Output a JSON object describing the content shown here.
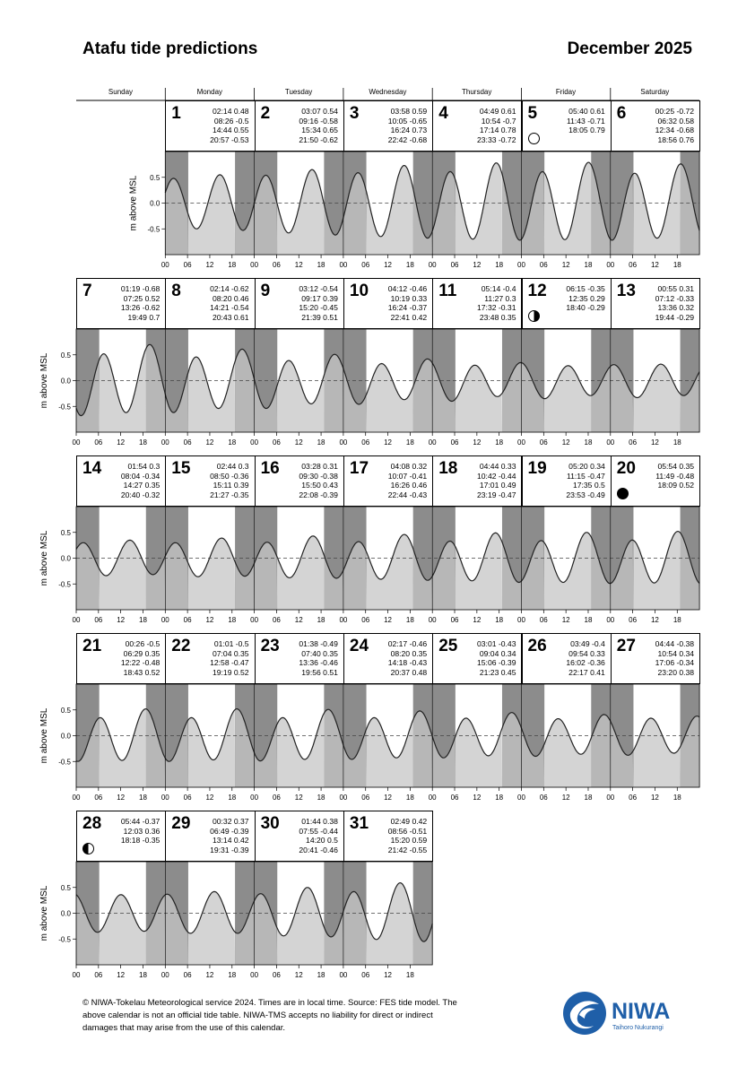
{
  "title": "Atafu tide predictions",
  "month": "December 2025",
  "weekdays": [
    "Sunday",
    "Monday",
    "Tuesday",
    "Wednesday",
    "Thursday",
    "Friday",
    "Saturday"
  ],
  "ylabel": "m above MSL",
  "footer": "© NIWA-Tokelau Meteorological service 2024.  Times are in local time.  Source: FES tide model.  The above calendar is not an official tide table.  NIWA-TMS accepts no liability for direct or indirect damages that may arise from the use of this calendar.",
  "logo": {
    "name": "NIWA",
    "tagline": "Taihoro Nukurangi",
    "color": "#1f5fa8"
  },
  "colors": {
    "night": "#8c8c8c",
    "day_fill": "#d4d4d4",
    "night_fill": "#b7b7b7"
  },
  "chart_data": {
    "type": "line",
    "ylim": [
      -1,
      1
    ],
    "yticks": [
      -0.5,
      0.0,
      0.5
    ],
    "ytick_labels": [
      "-0.5",
      "0.0",
      "0.5"
    ],
    "xtick_labels": [
      "00",
      "06",
      "12",
      "18"
    ],
    "sunrise_hour": 6.2,
    "sunset_hour": 18.8,
    "days": [
      {
        "day": "1",
        "col": 1,
        "row": 0,
        "tides": [
          [
            "02:14",
            "0.48"
          ],
          [
            "08:26",
            "-0.5"
          ],
          [
            "14:44",
            "0.55"
          ],
          [
            "20:57",
            "-0.53"
          ]
        ]
      },
      {
        "day": "2",
        "col": 2,
        "row": 0,
        "tides": [
          [
            "03:07",
            "0.54"
          ],
          [
            "09:16",
            "-0.58"
          ],
          [
            "15:34",
            "0.65"
          ],
          [
            "21:50",
            "-0.62"
          ]
        ]
      },
      {
        "day": "3",
        "col": 3,
        "row": 0,
        "tides": [
          [
            "03:58",
            "0.59"
          ],
          [
            "10:05",
            "-0.65"
          ],
          [
            "16:24",
            "0.73"
          ],
          [
            "22:42",
            "-0.68"
          ]
        ]
      },
      {
        "day": "4",
        "col": 4,
        "row": 0,
        "tides": [
          [
            "04:49",
            "0.61"
          ],
          [
            "10:54",
            "-0.7"
          ],
          [
            "17:14",
            "0.78"
          ],
          [
            "23:33",
            "-0.72"
          ]
        ]
      },
      {
        "day": "5",
        "col": 5,
        "row": 0,
        "moon": "full",
        "tides": [
          [
            "05:40",
            "0.61"
          ],
          [
            "11:43",
            "-0.71"
          ],
          [
            "18:05",
            "0.79"
          ]
        ]
      },
      {
        "day": "6",
        "col": 6,
        "row": 0,
        "tides": [
          [
            "00:25",
            "-0.72"
          ],
          [
            "06:32",
            "0.58"
          ],
          [
            "12:34",
            "-0.68"
          ],
          [
            "18:56",
            "0.76"
          ]
        ]
      },
      {
        "day": "7",
        "col": 0,
        "row": 1,
        "tides": [
          [
            "01:19",
            "-0.68"
          ],
          [
            "07:25",
            "0.52"
          ],
          [
            "13:26",
            "-0.62"
          ],
          [
            "19:49",
            "0.7"
          ]
        ]
      },
      {
        "day": "8",
        "col": 1,
        "row": 1,
        "tides": [
          [
            "02:14",
            "-0.62"
          ],
          [
            "08:20",
            "0.46"
          ],
          [
            "14:21",
            "-0.54"
          ],
          [
            "20:43",
            "0.61"
          ]
        ]
      },
      {
        "day": "9",
        "col": 2,
        "row": 1,
        "tides": [
          [
            "03:12",
            "-0.54"
          ],
          [
            "09:17",
            "0.39"
          ],
          [
            "15:20",
            "-0.45"
          ],
          [
            "21:39",
            "0.51"
          ]
        ]
      },
      {
        "day": "10",
        "col": 3,
        "row": 1,
        "tides": [
          [
            "04:12",
            "-0.46"
          ],
          [
            "10:19",
            "0.33"
          ],
          [
            "16:24",
            "-0.37"
          ],
          [
            "22:41",
            "0.42"
          ]
        ]
      },
      {
        "day": "11",
        "col": 4,
        "row": 1,
        "tides": [
          [
            "05:14",
            "-0.4"
          ],
          [
            "11:27",
            "0.3"
          ],
          [
            "17:32",
            "-0.31"
          ],
          [
            "23:48",
            "0.35"
          ]
        ]
      },
      {
        "day": "12",
        "col": 5,
        "row": 1,
        "moon": "firstq",
        "tides": [
          [
            "06:15",
            "-0.35"
          ],
          [
            "12:35",
            "0.29"
          ],
          [
            "18:40",
            "-0.29"
          ]
        ]
      },
      {
        "day": "13",
        "col": 6,
        "row": 1,
        "tides": [
          [
            "00:55",
            "0.31"
          ],
          [
            "07:12",
            "-0.33"
          ],
          [
            "13:36",
            "0.32"
          ],
          [
            "19:44",
            "-0.29"
          ]
        ]
      },
      {
        "day": "14",
        "col": 0,
        "row": 2,
        "tides": [
          [
            "01:54",
            "0.3"
          ],
          [
            "08:04",
            "-0.34"
          ],
          [
            "14:27",
            "0.35"
          ],
          [
            "20:40",
            "-0.32"
          ]
        ]
      },
      {
        "day": "15",
        "col": 1,
        "row": 2,
        "tides": [
          [
            "02:44",
            "0.3"
          ],
          [
            "08:50",
            "-0.36"
          ],
          [
            "15:11",
            "0.39"
          ],
          [
            "21:27",
            "-0.35"
          ]
        ]
      },
      {
        "day": "16",
        "col": 2,
        "row": 2,
        "tides": [
          [
            "03:28",
            "0.31"
          ],
          [
            "09:30",
            "-0.38"
          ],
          [
            "15:50",
            "0.43"
          ],
          [
            "22:08",
            "-0.39"
          ]
        ]
      },
      {
        "day": "17",
        "col": 3,
        "row": 2,
        "tides": [
          [
            "04:08",
            "0.32"
          ],
          [
            "10:07",
            "-0.41"
          ],
          [
            "16:26",
            "0.46"
          ],
          [
            "22:44",
            "-0.43"
          ]
        ]
      },
      {
        "day": "18",
        "col": 4,
        "row": 2,
        "tides": [
          [
            "04:44",
            "0.33"
          ],
          [
            "10:42",
            "-0.44"
          ],
          [
            "17:01",
            "0.49"
          ],
          [
            "23:19",
            "-0.47"
          ]
        ]
      },
      {
        "day": "19",
        "col": 5,
        "row": 2,
        "tides": [
          [
            "05:20",
            "0.34"
          ],
          [
            "11:15",
            "-0.47"
          ],
          [
            "17:35",
            "0.5"
          ],
          [
            "23:53",
            "-0.49"
          ]
        ]
      },
      {
        "day": "20",
        "col": 6,
        "row": 2,
        "moon": "new",
        "tides": [
          [
            "05:54",
            "0.35"
          ],
          [
            "11:49",
            "-0.48"
          ],
          [
            "18:09",
            "0.52"
          ]
        ]
      },
      {
        "day": "21",
        "col": 0,
        "row": 3,
        "tides": [
          [
            "00:26",
            "-0.5"
          ],
          [
            "06:29",
            "0.35"
          ],
          [
            "12:22",
            "-0.48"
          ],
          [
            "18:43",
            "0.52"
          ]
        ]
      },
      {
        "day": "22",
        "col": 1,
        "row": 3,
        "tides": [
          [
            "01:01",
            "-0.5"
          ],
          [
            "07:04",
            "0.35"
          ],
          [
            "12:58",
            "-0.47"
          ],
          [
            "19:19",
            "0.52"
          ]
        ]
      },
      {
        "day": "23",
        "col": 2,
        "row": 3,
        "tides": [
          [
            "01:38",
            "-0.49"
          ],
          [
            "07:40",
            "0.35"
          ],
          [
            "13:36",
            "-0.46"
          ],
          [
            "19:56",
            "0.51"
          ]
        ]
      },
      {
        "day": "24",
        "col": 3,
        "row": 3,
        "tides": [
          [
            "02:17",
            "-0.46"
          ],
          [
            "08:20",
            "0.35"
          ],
          [
            "14:18",
            "-0.43"
          ],
          [
            "20:37",
            "0.48"
          ]
        ]
      },
      {
        "day": "25",
        "col": 4,
        "row": 3,
        "tides": [
          [
            "03:01",
            "-0.43"
          ],
          [
            "09:04",
            "0.34"
          ],
          [
            "15:06",
            "-0.39"
          ],
          [
            "21:23",
            "0.45"
          ]
        ]
      },
      {
        "day": "26",
        "col": 5,
        "row": 3,
        "tides": [
          [
            "03:49",
            "-0.4"
          ],
          [
            "09:54",
            "0.33"
          ],
          [
            "16:02",
            "-0.36"
          ],
          [
            "22:17",
            "0.41"
          ]
        ]
      },
      {
        "day": "27",
        "col": 6,
        "row": 3,
        "tides": [
          [
            "04:44",
            "-0.38"
          ],
          [
            "10:54",
            "0.34"
          ],
          [
            "17:06",
            "-0.34"
          ],
          [
            "23:20",
            "0.38"
          ]
        ]
      },
      {
        "day": "28",
        "col": 0,
        "row": 4,
        "moon": "lastq",
        "tides": [
          [
            "05:44",
            "-0.37"
          ],
          [
            "12:03",
            "0.36"
          ],
          [
            "18:18",
            "-0.35"
          ]
        ]
      },
      {
        "day": "29",
        "col": 1,
        "row": 4,
        "tides": [
          [
            "00:32",
            "0.37"
          ],
          [
            "06:49",
            "-0.39"
          ],
          [
            "13:14",
            "0.42"
          ],
          [
            "19:31",
            "-0.39"
          ]
        ]
      },
      {
        "day": "30",
        "col": 2,
        "row": 4,
        "tides": [
          [
            "01:44",
            "0.38"
          ],
          [
            "07:55",
            "-0.44"
          ],
          [
            "14:20",
            "0.5"
          ],
          [
            "20:41",
            "-0.46"
          ]
        ]
      },
      {
        "day": "31",
        "col": 3,
        "row": 4,
        "tides": [
          [
            "02:49",
            "0.42"
          ],
          [
            "08:56",
            "-0.51"
          ],
          [
            "15:20",
            "0.59"
          ],
          [
            "21:42",
            "-0.55"
          ]
        ]
      }
    ]
  }
}
